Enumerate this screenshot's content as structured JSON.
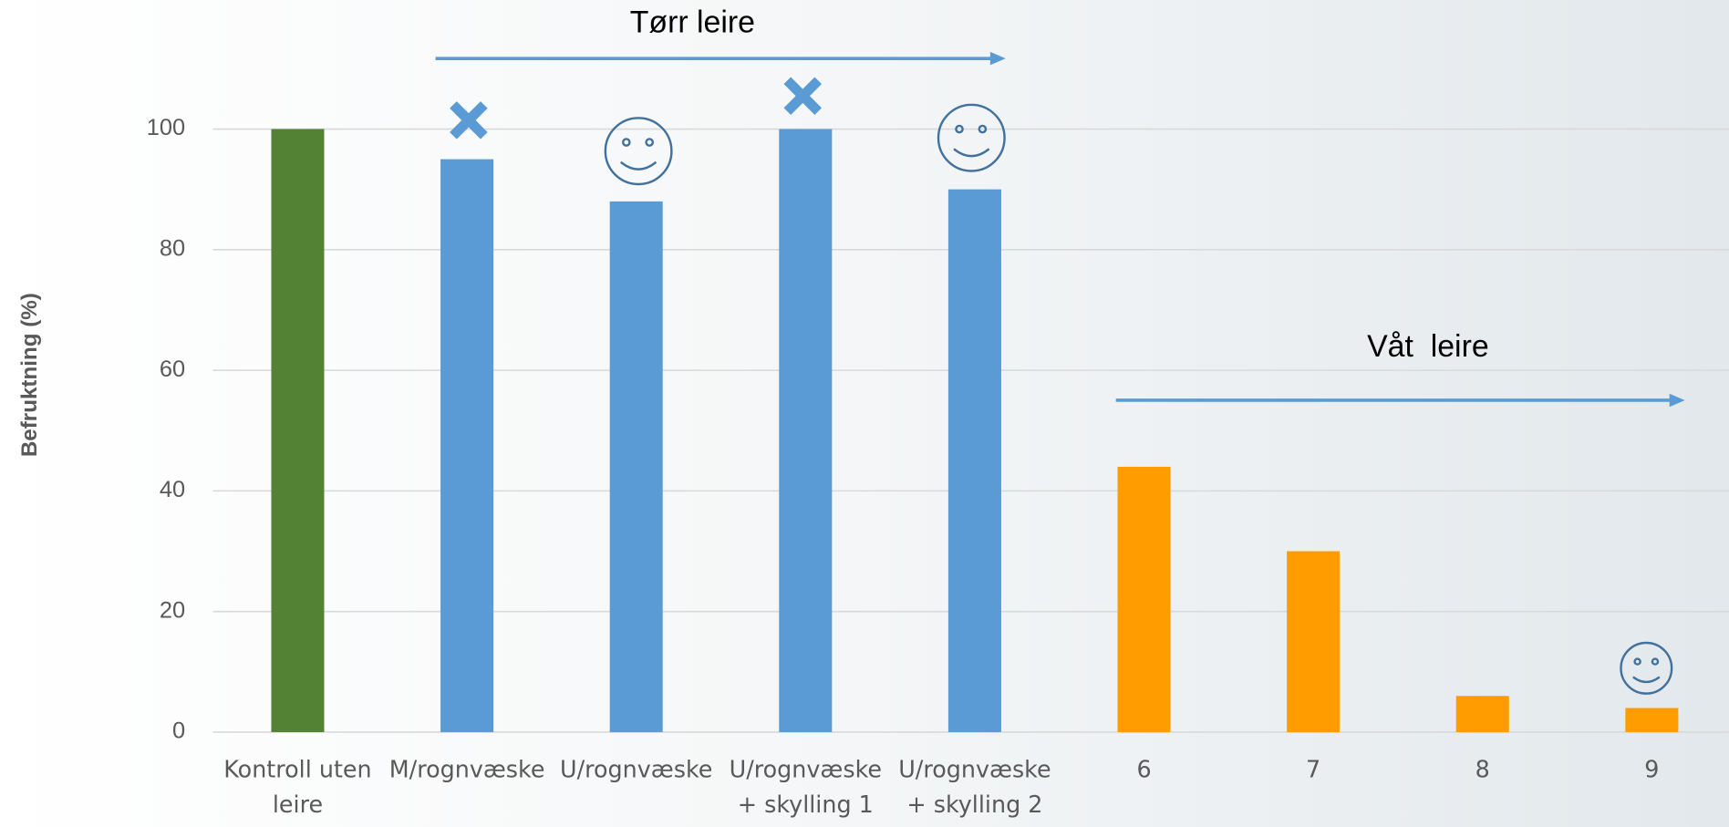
{
  "chart_data": {
    "type": "bar",
    "y_label": "Befruktning (%)",
    "annotations": [
      "Tørr leire",
      "Våt  leire"
    ],
    "categories": [
      "Kontroll uten leire",
      "M/rognvæske",
      "U/rognvæske",
      "U/rognvæske + skylling 1",
      "U/rognvæske + skylling 2",
      "6",
      "7",
      "8",
      "9"
    ],
    "values": [
      100,
      95,
      88,
      100,
      90,
      44,
      30,
      6,
      4
    ],
    "colors": [
      "#548235",
      "#5b9bd5",
      "#5b9bd5",
      "#5b9bd5",
      "#5b9bd5",
      "#ff9c00",
      "#ff9c00",
      "#ff9c00",
      "#ff9c00"
    ],
    "ylim": [
      0,
      100
    ],
    "yticks": [
      0,
      20,
      40,
      60,
      80,
      100
    ],
    "grid": true
  }
}
